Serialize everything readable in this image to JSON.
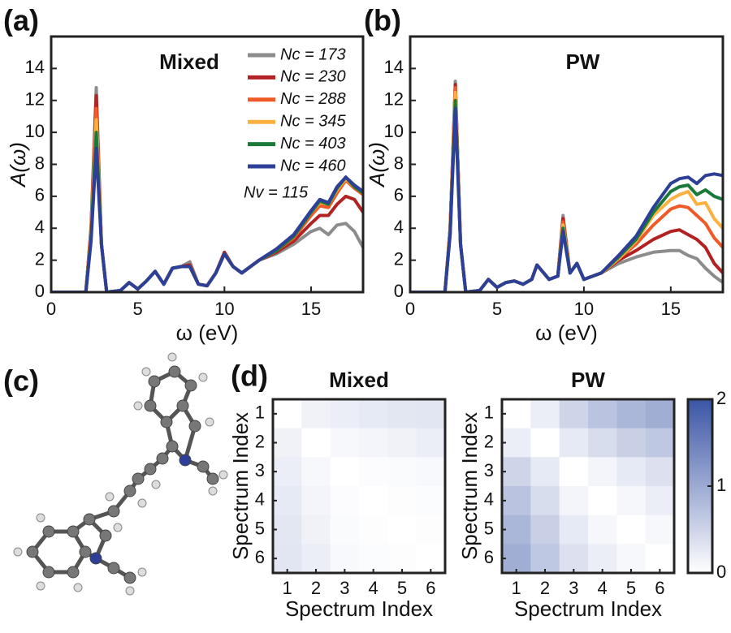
{
  "chart_data": [
    {
      "type": "line",
      "panel_label": "(a)",
      "title": "Mixed",
      "xlabel": "ω (eV)",
      "ylabel": "A(ω)",
      "x": [
        0,
        2.0,
        2.3,
        2.6,
        2.9,
        3.2,
        4.0,
        4.5,
        5.0,
        5.5,
        6.0,
        6.5,
        7.0,
        7.5,
        8.0,
        8.5,
        9.0,
        9.5,
        10.0,
        10.5,
        11.0,
        12.0,
        13.0,
        14.0,
        15.0,
        15.5,
        16.0,
        16.5,
        17.0,
        17.5,
        18.0
      ],
      "xlim": [
        0,
        18
      ],
      "xticks": [
        0,
        5,
        10,
        15
      ],
      "ylim": [
        0,
        16
      ],
      "yticks": [
        0,
        2,
        4,
        6,
        8,
        10,
        12,
        14
      ],
      "legend": true,
      "legend_position": "upper right",
      "annotation": {
        "text": "Nv = 115",
        "color": "#2e3f98"
      },
      "series": [
        {
          "name": "Nc = 173",
          "color": "#8c8c8c",
          "values": [
            0,
            0,
            4,
            12.8,
            3,
            0,
            0.1,
            0.6,
            0.2,
            0.7,
            1.3,
            0.5,
            1.5,
            1.6,
            1.9,
            0.5,
            0.4,
            1.2,
            2.5,
            1.6,
            1.2,
            2.0,
            2.4,
            3.0,
            3.8,
            4.0,
            3.6,
            4.2,
            4.3,
            3.8,
            2.8
          ]
        },
        {
          "name": "Nc = 230",
          "color": "#b22222",
          "values": [
            0,
            0,
            4,
            12.3,
            3,
            0,
            0.1,
            0.6,
            0.2,
            0.7,
            1.3,
            0.5,
            1.5,
            1.6,
            1.7,
            0.5,
            0.4,
            1.2,
            2.5,
            1.6,
            1.2,
            2.0,
            2.5,
            3.2,
            4.3,
            4.8,
            4.8,
            5.5,
            6.0,
            5.8,
            5.0
          ]
        },
        {
          "name": "Nc = 288",
          "color": "#f05a28",
          "values": [
            0,
            0,
            3.8,
            11.5,
            3,
            0,
            0.1,
            0.6,
            0.2,
            0.7,
            1.3,
            0.5,
            1.5,
            1.6,
            1.6,
            0.5,
            0.4,
            1.2,
            2.4,
            1.6,
            1.2,
            2.0,
            2.6,
            3.4,
            4.8,
            5.4,
            5.3,
            6.2,
            7.0,
            6.5,
            6.1
          ]
        },
        {
          "name": "Nc = 345",
          "color": "#fbb040",
          "values": [
            0,
            0,
            3.6,
            10.8,
            3,
            0,
            0.1,
            0.6,
            0.2,
            0.7,
            1.3,
            0.5,
            1.5,
            1.6,
            1.6,
            0.5,
            0.4,
            1.2,
            2.4,
            1.6,
            1.2,
            2.0,
            2.6,
            3.5,
            5.0,
            5.6,
            5.5,
            6.4,
            7.1,
            6.6,
            6.2
          ]
        },
        {
          "name": "Nc = 403",
          "color": "#1b7a3a",
          "values": [
            0,
            0,
            3.4,
            10.0,
            3,
            0,
            0.1,
            0.6,
            0.2,
            0.7,
            1.3,
            0.5,
            1.5,
            1.6,
            1.6,
            0.5,
            0.4,
            1.2,
            2.4,
            1.6,
            1.2,
            2.0,
            2.6,
            3.5,
            5.0,
            5.7,
            5.5,
            6.5,
            7.2,
            6.6,
            6.2
          ]
        },
        {
          "name": "Nc = 460",
          "color": "#2e3f98",
          "values": [
            0,
            0,
            3.2,
            9.0,
            3,
            0,
            0.1,
            0.6,
            0.2,
            0.7,
            1.3,
            0.5,
            1.5,
            1.6,
            1.6,
            0.5,
            0.4,
            1.2,
            2.4,
            1.6,
            1.2,
            2.0,
            2.7,
            3.6,
            5.1,
            5.8,
            5.6,
            6.6,
            7.2,
            6.7,
            6.3
          ]
        }
      ]
    },
    {
      "type": "line",
      "panel_label": "(b)",
      "title": "PW",
      "xlabel": "ω (eV)",
      "ylabel": "A(ω)",
      "x": [
        0,
        2.0,
        2.3,
        2.6,
        2.9,
        3.2,
        4.0,
        4.5,
        5.0,
        5.5,
        6.0,
        6.5,
        7.0,
        7.3,
        8.0,
        8.5,
        8.8,
        9.2,
        9.6,
        10.0,
        11.0,
        12.0,
        13.0,
        14.0,
        15.0,
        15.5,
        16.0,
        16.5,
        17.0,
        17.5,
        18.0
      ],
      "xlim": [
        0,
        18
      ],
      "xticks": [
        0,
        5,
        10,
        15
      ],
      "ylim": [
        0,
        16
      ],
      "yticks": [
        0,
        2,
        4,
        6,
        8,
        10,
        12,
        14
      ],
      "legend": false,
      "series": [
        {
          "name": "Nc = 173",
          "color": "#8c8c8c",
          "values": [
            0,
            0,
            4,
            13.2,
            3,
            0,
            0.1,
            0.8,
            0.3,
            0.6,
            0.7,
            0.5,
            0.8,
            1.7,
            0.8,
            1.0,
            4.8,
            1.2,
            1.8,
            0.8,
            1.2,
            1.8,
            2.2,
            2.5,
            2.6,
            2.6,
            2.3,
            2.1,
            1.5,
            1.0,
            0.6
          ]
        },
        {
          "name": "Nc = 230",
          "color": "#b22222",
          "values": [
            0,
            0,
            4,
            13.0,
            3,
            0,
            0.1,
            0.8,
            0.3,
            0.6,
            0.7,
            0.5,
            0.8,
            1.7,
            0.8,
            1.0,
            4.6,
            1.2,
            1.8,
            0.8,
            1.2,
            2.0,
            2.6,
            3.3,
            3.8,
            3.9,
            3.6,
            3.3,
            2.8,
            1.8,
            1.2
          ]
        },
        {
          "name": "Nc = 288",
          "color": "#f05a28",
          "values": [
            0,
            0,
            3.9,
            12.8,
            3,
            0,
            0.1,
            0.8,
            0.3,
            0.6,
            0.7,
            0.5,
            0.8,
            1.7,
            0.8,
            1.0,
            4.4,
            1.2,
            1.8,
            0.8,
            1.2,
            2.1,
            3.0,
            4.2,
            5.2,
            5.4,
            5.3,
            4.8,
            4.3,
            3.4,
            2.8
          ]
        },
        {
          "name": "Nc = 345",
          "color": "#fbb040",
          "values": [
            0,
            0,
            3.8,
            12.5,
            3,
            0,
            0.1,
            0.8,
            0.3,
            0.6,
            0.7,
            0.5,
            0.8,
            1.7,
            0.8,
            1.0,
            4.2,
            1.2,
            1.8,
            0.8,
            1.2,
            2.1,
            3.2,
            4.8,
            5.8,
            6.1,
            6.3,
            5.5,
            5.6,
            4.6,
            4.0
          ]
        },
        {
          "name": "Nc = 403",
          "color": "#1b7a3a",
          "values": [
            0,
            0,
            3.7,
            12.0,
            3,
            0,
            0.1,
            0.8,
            0.3,
            0.6,
            0.7,
            0.5,
            0.8,
            1.7,
            0.8,
            1.0,
            4.0,
            1.2,
            1.8,
            0.8,
            1.2,
            2.2,
            3.3,
            5.0,
            6.3,
            6.6,
            6.7,
            6.1,
            6.4,
            6.0,
            5.8
          ]
        },
        {
          "name": "Nc = 460",
          "color": "#2e3f98",
          "values": [
            0,
            0,
            3.6,
            11.5,
            3,
            0,
            0.1,
            0.8,
            0.3,
            0.6,
            0.7,
            0.5,
            0.8,
            1.7,
            0.8,
            1.0,
            3.8,
            1.2,
            1.8,
            0.8,
            1.2,
            2.3,
            3.5,
            5.3,
            6.8,
            7.1,
            7.2,
            6.8,
            7.3,
            7.4,
            7.3
          ]
        }
      ]
    },
    {
      "type": "heatmap",
      "panel_label": "(d)",
      "title": "Mixed",
      "xlabel": "Spectrum Index",
      "ylabel": "Spectrum Index",
      "xticks": [
        1,
        2,
        3,
        4,
        5,
        6
      ],
      "yticks": [
        1,
        2,
        3,
        4,
        5,
        6
      ],
      "matrix": [
        [
          0,
          0.15,
          0.2,
          0.25,
          0.28,
          0.3
        ],
        [
          0.15,
          0,
          0.08,
          0.12,
          0.15,
          0.2
        ],
        [
          0.2,
          0.08,
          0,
          0.03,
          0.05,
          0.07
        ],
        [
          0.25,
          0.12,
          0.03,
          0,
          0.02,
          0.04
        ],
        [
          0.28,
          0.15,
          0.05,
          0.02,
          0,
          0.02
        ],
        [
          0.3,
          0.2,
          0.07,
          0.04,
          0.02,
          0
        ]
      ]
    },
    {
      "type": "heatmap",
      "title": "PW",
      "xlabel": "Spectrum Index",
      "ylabel": "Spectrum Index",
      "xticks": [
        1,
        2,
        3,
        4,
        5,
        6
      ],
      "yticks": [
        1,
        2,
        3,
        4,
        5,
        6
      ],
      "matrix": [
        [
          0,
          0.2,
          0.5,
          0.7,
          0.85,
          0.95
        ],
        [
          0.2,
          0,
          0.25,
          0.4,
          0.55,
          0.65
        ],
        [
          0.5,
          0.25,
          0,
          0.12,
          0.25,
          0.35
        ],
        [
          0.7,
          0.4,
          0.12,
          0,
          0.1,
          0.2
        ],
        [
          0.85,
          0.55,
          0.25,
          0.1,
          0,
          0.08
        ],
        [
          0.95,
          0.65,
          0.35,
          0.2,
          0.08,
          0
        ]
      ],
      "colorbar": {
        "lim": [
          0,
          2
        ],
        "ticks": [
          0,
          1,
          2
        ],
        "colors": [
          "#ffffff",
          "#3a55a5"
        ]
      }
    }
  ],
  "molecule_panel": {
    "label": "(c)"
  }
}
